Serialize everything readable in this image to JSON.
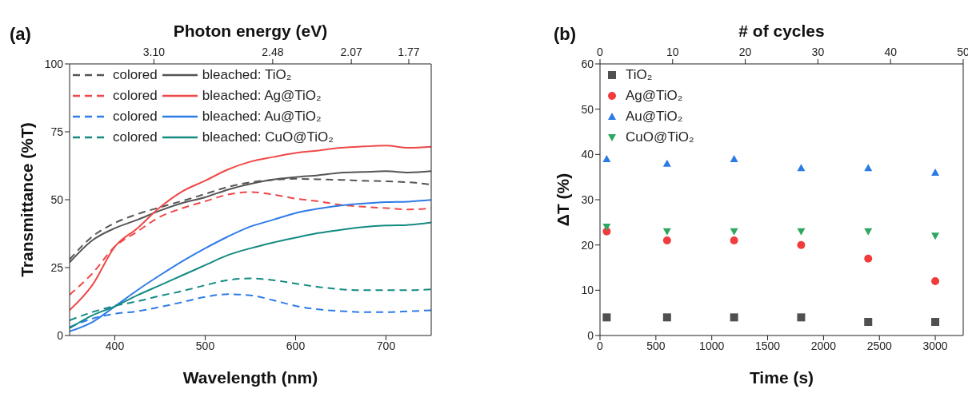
{
  "chart_data": [
    {
      "type": "line",
      "title": "(a)",
      "xlabel": "Wavelength (nm)",
      "ylabel": "Transmittance (%T)",
      "x2label": "Photon energy (eV)",
      "x": [
        350,
        375,
        400,
        425,
        450,
        475,
        500,
        525,
        550,
        575,
        600,
        625,
        650,
        675,
        700,
        725,
        750
      ],
      "xlim": [
        350,
        750
      ],
      "xticks": [
        400,
        500,
        600,
        700
      ],
      "ylim": [
        0,
        100
      ],
      "yticks": [
        0,
        25,
        50,
        75,
        100
      ],
      "x2lim": [
        3.54,
        1.653
      ],
      "x2ticks": [
        {
          "value": 3.1,
          "label": "3.10"
        },
        2.48,
        2.07,
        1.77
      ],
      "grid": false,
      "legend": "top left",
      "series": [
        {
          "name": "colored",
          "color": "#555555",
          "line_style": "dashed",
          "values": [
            28,
            36.4,
            41.4,
            44.7,
            47.2,
            49.6,
            52.1,
            54.7,
            56.4,
            57.3,
            57.7,
            57.5,
            57.3,
            57,
            56.8,
            56.4,
            55.6
          ]
        },
        {
          "name": "bleached: TiO₂",
          "color": "#555555",
          "line_style": "solid",
          "values": [
            26.9,
            35,
            39.5,
            42.6,
            46,
            48.8,
            50.9,
            53.7,
            55.8,
            57.4,
            58.3,
            59,
            59.9,
            60.2,
            60.5,
            60,
            60.5
          ]
        },
        {
          "name": "colored",
          "color": "#f04848",
          "line_style": "dashed",
          "values": [
            15,
            22.8,
            32.7,
            38.3,
            43.7,
            46.9,
            49.4,
            51.9,
            52.8,
            51.9,
            50.4,
            49.4,
            48.1,
            47.4,
            46.9,
            46.4,
            46.9
          ]
        },
        {
          "name": "bleached: Ag@TiO₂",
          "color": "#f04848",
          "line_style": "solid",
          "values": [
            9.3,
            18.5,
            32.7,
            39.5,
            47.2,
            53.1,
            57,
            61.1,
            64,
            65.7,
            67.2,
            68.1,
            69.1,
            69.6,
            69.9,
            69.1,
            69.5
          ]
        },
        {
          "name": "colored",
          "color": "#2f7be8",
          "line_style": "dashed",
          "values": [
            3.1,
            6.2,
            8,
            8.9,
            10.5,
            12.3,
            14.2,
            15.2,
            14.8,
            13,
            10.9,
            9.6,
            9,
            8.6,
            8.6,
            8.9,
            9.3
          ]
        },
        {
          "name": "bleached: Au@TiO₂",
          "color": "#2f7be8",
          "line_style": "solid",
          "values": [
            1.5,
            4.9,
            10.7,
            16.7,
            22.2,
            27.4,
            32.1,
            36.4,
            40.1,
            42.6,
            45.1,
            46.7,
            47.9,
            48.6,
            49.1,
            49.3,
            49.9
          ]
        },
        {
          "name": "colored",
          "color": "#138a82",
          "line_style": "dashed",
          "values": [
            5.6,
            8.6,
            10.9,
            12.6,
            14.6,
            16.4,
            18.5,
            20.4,
            21,
            20.4,
            19.1,
            17.9,
            17,
            16.7,
            16.7,
            16.7,
            17
          ]
        },
        {
          "name": "bleached: CuO@TiO₂",
          "color": "#138a82",
          "line_style": "solid",
          "values": [
            2.7,
            7.4,
            10.7,
            14.8,
            18.5,
            22.2,
            25.9,
            29.6,
            32.1,
            34.2,
            36,
            37.7,
            38.9,
            39.9,
            40.5,
            40.7,
            41.6
          ]
        }
      ]
    },
    {
      "type": "scatter",
      "title": "(b)",
      "xlabel": "Time (s)",
      "ylabel": "ΔT (%)",
      "x2label": "# of cycles",
      "x": [
        60,
        600,
        1200,
        1800,
        2400,
        3000
      ],
      "xlim": [
        0,
        3250
      ],
      "xticks": [
        0,
        500,
        1000,
        1500,
        2000,
        2500,
        3000
      ],
      "ylim": [
        0,
        60
      ],
      "yticks": [
        0,
        10,
        20,
        30,
        40,
        50,
        60
      ],
      "x2lim": [
        0,
        50
      ],
      "x2ticks": [
        0,
        10,
        20,
        30,
        40,
        50
      ],
      "grid": false,
      "legend": "top left",
      "series": [
        {
          "name": "TiO₂",
          "color": "#505050",
          "marker": "square",
          "values": [
            4,
            4,
            4,
            4,
            3,
            3
          ]
        },
        {
          "name": "Ag@TiO₂",
          "color": "#f03c3c",
          "marker": "circle",
          "values": [
            23,
            21,
            21,
            20,
            17,
            12
          ]
        },
        {
          "name": "Au@TiO₂",
          "color": "#2a7be4",
          "marker": "triangle",
          "values": [
            39,
            38,
            39,
            37,
            37,
            36
          ]
        },
        {
          "name": "CuO@TiO₂",
          "color": "#2ea860",
          "marker": "triangle-down",
          "values": [
            24,
            23,
            23,
            23,
            23,
            22
          ]
        }
      ]
    }
  ]
}
